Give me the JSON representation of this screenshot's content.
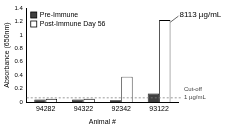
{
  "chart_data": {
    "type": "bar",
    "x_label": "Animal #",
    "y_label": "Absorbance (650nm)",
    "categories": [
      "94282",
      "94322",
      "92342",
      "93122"
    ],
    "series": [
      {
        "name": "Pre-Immune",
        "color": "#404040",
        "values": [
          0.04,
          0.04,
          0.03,
          0.13
        ]
      },
      {
        "name": "Post-Immune Day 56",
        "color": "#ffffff",
        "values": [
          0.05,
          0.05,
          0.38,
          1.22
        ]
      }
    ],
    "ylim": [
      0,
      1.4
    ],
    "yticks": [
      0,
      0.2,
      0.4,
      0.6,
      0.8,
      1,
      1.2,
      1.4
    ],
    "grid": false,
    "legend": "upper left",
    "cutoff": {
      "value": 0.065,
      "label": [
        "Cut-off",
        "1 µg/mL"
      ]
    },
    "annotations": [
      {
        "text": "8113 µg/mL",
        "category": "93122",
        "series": "Post-Immune Day 56"
      }
    ]
  }
}
